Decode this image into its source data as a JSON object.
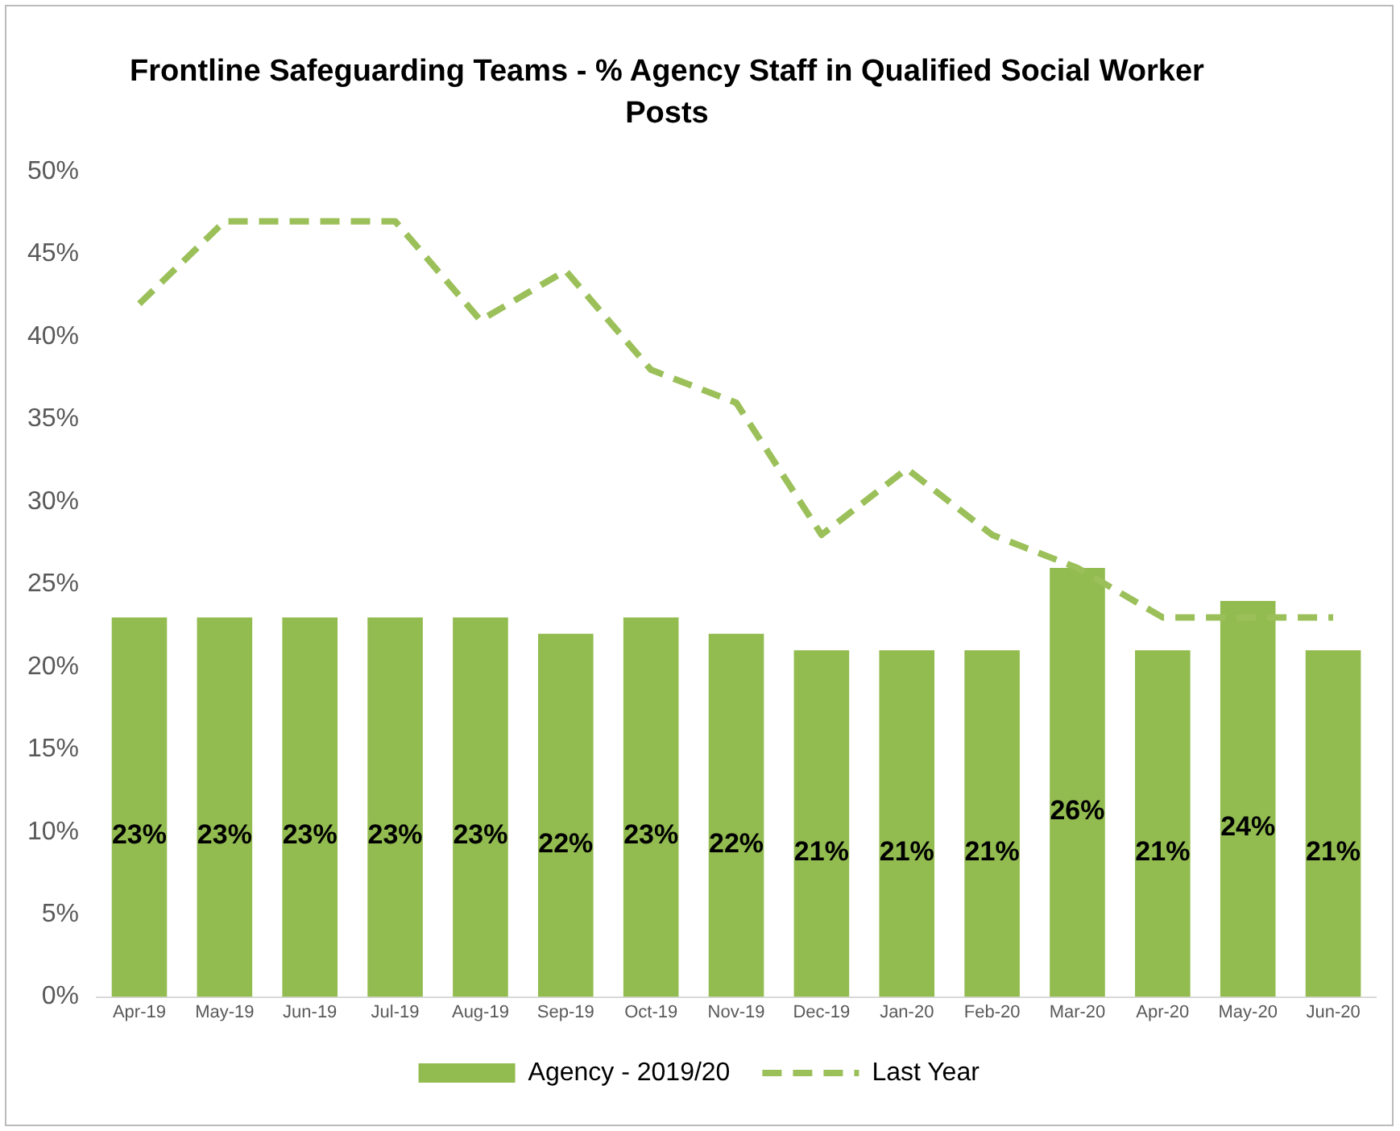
{
  "chart_data": {
    "type": "bar",
    "title": "Frontline Safeguarding Teams - % Agency Staff in Qualified Social Worker Posts",
    "categories": [
      "Apr-19",
      "May-19",
      "Jun-19",
      "Jul-19",
      "Aug-19",
      "Sep-19",
      "Oct-19",
      "Nov-19",
      "Dec-19",
      "Jan-20",
      "Feb-20",
      "Mar-20",
      "Apr-20",
      "May-20",
      "Jun-20"
    ],
    "series": [
      {
        "name": "Agency - 2019/20",
        "color": "#92bb50",
        "values": [
          23,
          23,
          23,
          23,
          23,
          22,
          23,
          22,
          21,
          21,
          21,
          26,
          21,
          24,
          21
        ],
        "value_labels": [
          "23%",
          "23%",
          "23%",
          "23%",
          "23%",
          "22%",
          "23%",
          "22%",
          "21%",
          "21%",
          "21%",
          "26%",
          "21%",
          "24%",
          "21%"
        ]
      },
      {
        "name": "Last Year",
        "type": "line",
        "color": "#9bc05a",
        "line_style": "dashed",
        "marker": "none",
        "values": [
          42,
          47,
          47,
          47,
          41,
          44,
          38,
          36,
          28,
          32,
          28,
          26,
          23,
          23,
          23
        ]
      }
    ],
    "ylim": [
      0,
      50
    ],
    "yticks": [
      {
        "value": 0,
        "label": "0%"
      },
      {
        "value": 5,
        "label": "5%"
      },
      {
        "value": 10,
        "label": "10%"
      },
      {
        "value": 15,
        "label": "15%"
      },
      {
        "value": 20,
        "label": "20%"
      },
      {
        "value": 25,
        "label": "25%"
      },
      {
        "value": 30,
        "label": "30%"
      },
      {
        "value": 35,
        "label": "35%"
      },
      {
        "value": 40,
        "label": "40%"
      },
      {
        "value": 45,
        "label": "45%"
      },
      {
        "value": 50,
        "label": "50%"
      }
    ],
    "grid": false,
    "legend": "bottom"
  }
}
